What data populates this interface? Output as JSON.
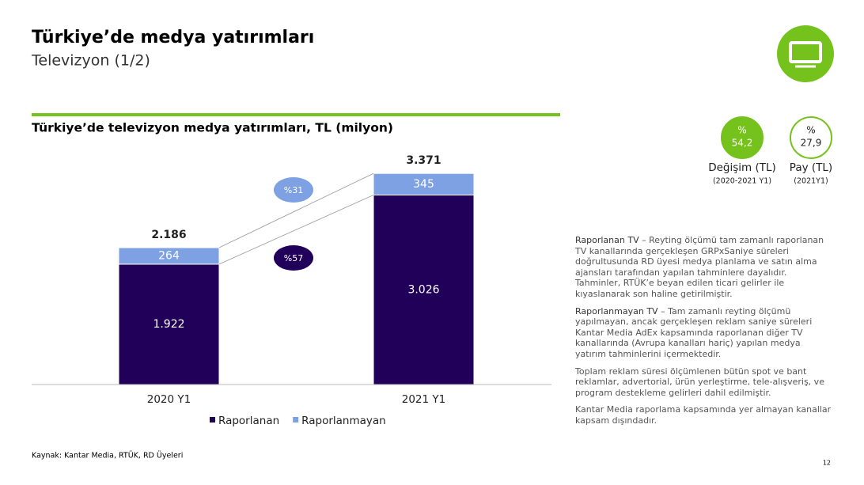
{
  "header": {
    "title": "Türkiye’de medya yatırımları",
    "subtitle": "Televizyon (1/2)"
  },
  "chart_data": {
    "type": "stacked_bar",
    "title": "Türkiye’de televizyon medya yatırımları, TL (milyon)",
    "categories": [
      "2020 Y1",
      "2021 Y1"
    ],
    "series": [
      {
        "name": "Raporlanan",
        "color": "#21005a",
        "values": [
          1922,
          3026
        ],
        "value_labels": [
          "1.922",
          "3.026"
        ]
      },
      {
        "name": "Raporlanmayan",
        "color": "#7ea1e3",
        "values": [
          264,
          345
        ],
        "value_labels": [
          "264",
          "345"
        ]
      }
    ],
    "totals": {
      "values": [
        2186,
        3371
      ],
      "value_labels": [
        "2.186",
        "3.371"
      ]
    },
    "annotations": [
      {
        "text": "%31",
        "color": "#7ea1e3"
      },
      {
        "text": "%57",
        "color": "#21005a"
      }
    ],
    "ylim": [
      0,
      3500
    ]
  },
  "kpis": [
    {
      "symbol": "%",
      "value": "54,2",
      "label": "Değişim (TL)",
      "sublabel": "(2020-2021 Y1)"
    },
    {
      "symbol": "%",
      "value": "27,9",
      "label": "Pay (TL)",
      "sublabel": "(2021Y1)"
    }
  ],
  "notes": [
    {
      "term": "Raporlanan TV",
      "text": " – Reyting ölçümü tam zamanlı raporlanan TV kanallarında gerçekleşen GRPxSaniye süreleri doğrultusunda RD üyesi medya planlama ve satın alma ajansları tarafından yapılan tahminlere dayalıdır. Tahminler, RTÜK’e beyan edilen ticari gelirler ile kıyaslanarak son haline getirilmiştir."
    },
    {
      "term": "Raporlanmayan TV",
      "text": " – Tam zamanlı reyting ölçümü yapılmayan, ancak gerçekleşen reklam saniye süreleri Kantar Media AdEx kapsamında raporlanan diğer TV kanallarında (Avrupa kanalları hariç) yapılan medya yatırım tahminlerini içermektedir."
    },
    {
      "text": "Toplam reklam süresi ölçümlenen bütün spot ve bant reklamlar, advertorial, ürün yerleştirme, tele-alışveriş, ve program destekleme gelirleri dahil edilmiştir."
    },
    {
      "text": "Kantar Media raporlama kapsamında yer almayan kanallar kapsam dışındadır."
    }
  ],
  "footer": {
    "source": "Kaynak: Kantar Media, RTÜK, RD Üyeleri",
    "page": "12"
  }
}
